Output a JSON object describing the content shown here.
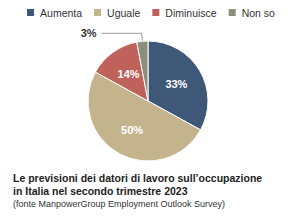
{
  "chart_data": {
    "type": "pie",
    "title": "Le previsioni dei datori di lavoro sull’occupazione\nin Italia nel secondo trimestre 2023",
    "subtitle": "(fonte ManpowerGroup Employment Outlook Survey)",
    "categories": [
      "Aumenta",
      "Uguale",
      "Diminuisce",
      "Non so"
    ],
    "values": [
      33,
      50,
      14,
      3
    ],
    "value_labels": [
      "33%",
      "50%",
      "14%",
      "3%"
    ],
    "colors": [
      "#3f5878",
      "#c4b48e",
      "#c0625c",
      "#8d8d7e"
    ],
    "legend": "top",
    "data_labels": true
  }
}
